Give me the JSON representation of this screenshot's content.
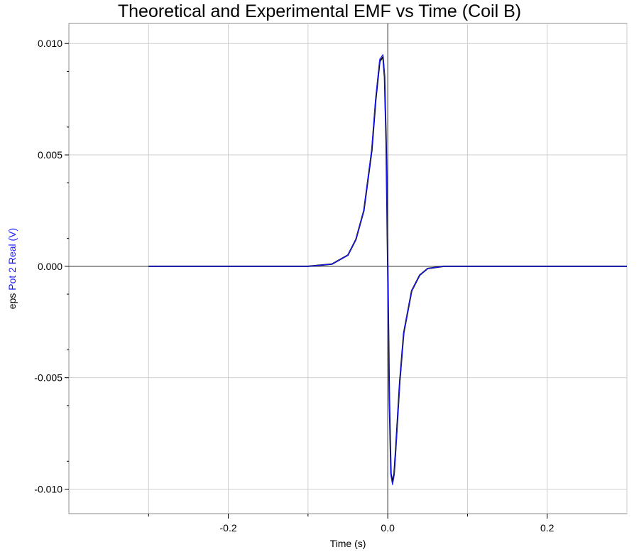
{
  "chart_data": {
    "type": "line",
    "title": "Theoretical and Experimental EMF vs Time (Coil B)",
    "xlabel": "Time (s)",
    "ylabel_parts": [
      {
        "text": "eps",
        "color": "#000000"
      },
      {
        "text": "Pot 2 Real (V)",
        "color": "#1a1aff"
      }
    ],
    "xlim": [
      -0.4,
      0.3
    ],
    "ylim": [
      -0.0111,
      0.0109
    ],
    "x_tick_values": [
      -0.2,
      0.0,
      0.2
    ],
    "x_tick_labels": [
      "-0.2",
      "0.0",
      "0.2"
    ],
    "y_tick_values": [
      0.01,
      0.005,
      0.0,
      -0.005,
      -0.01
    ],
    "y_tick_labels": [
      "0.010",
      "0.005",
      "0.000",
      "-0.005",
      "-0.010"
    ],
    "grid": true,
    "series": [
      {
        "color": "#000000",
        "x": [
          -0.3,
          -0.2,
          -0.1,
          -0.07,
          -0.05,
          -0.04,
          -0.03,
          -0.02,
          -0.015,
          -0.01,
          -0.006,
          -0.004,
          -0.002,
          0.0,
          0.002,
          0.004,
          0.006,
          0.008,
          0.01,
          0.015,
          0.02,
          0.03,
          0.04,
          0.05,
          0.07,
          0.1,
          0.2,
          0.3
        ],
        "values": [
          0.0,
          0.0,
          0.0,
          0.0001,
          0.0005,
          0.0012,
          0.0025,
          0.0052,
          0.0075,
          0.0092,
          0.0094,
          0.0085,
          0.0055,
          0.0,
          -0.006,
          -0.0093,
          -0.0097,
          -0.0093,
          -0.0082,
          -0.0052,
          -0.003,
          -0.0011,
          -0.0004,
          -0.0001,
          0.0,
          0.0,
          0.0,
          0.0
        ]
      },
      {
        "color": "#1a1aff",
        "x": [
          -0.3,
          -0.2,
          -0.1,
          -0.07,
          -0.05,
          -0.04,
          -0.03,
          -0.02,
          -0.015,
          -0.01,
          -0.006,
          -0.004,
          -0.002,
          0.0,
          0.002,
          0.004,
          0.006,
          0.008,
          0.01,
          0.015,
          0.02,
          0.03,
          0.04,
          0.05,
          0.07,
          0.1,
          0.2,
          0.3
        ],
        "values": [
          0.0,
          0.0,
          0.0,
          0.0001,
          0.0005,
          0.0012,
          0.0025,
          0.0053,
          0.0076,
          0.0093,
          0.0095,
          0.0086,
          0.0054,
          0.0,
          -0.0061,
          -0.0094,
          -0.0098,
          -0.0094,
          -0.0083,
          -0.0053,
          -0.003,
          -0.0011,
          -0.0004,
          -0.0001,
          0.0,
          0.0,
          0.0,
          0.0
        ]
      }
    ]
  }
}
